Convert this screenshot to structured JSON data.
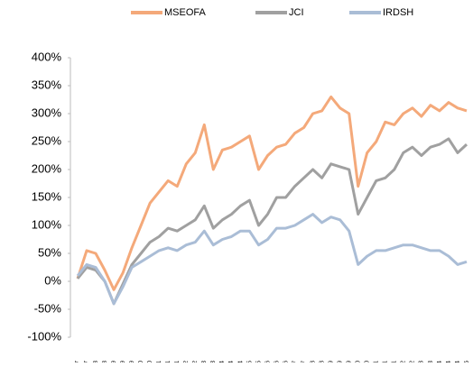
{
  "chart_data": {
    "type": "line",
    "categories": [
      "Jun-07",
      "Oct-07",
      "Mar-08",
      "Aug-08",
      "Jan-09",
      "Jun-09",
      "Nov-09",
      "Apr-10",
      "Sep-10",
      "Feb-11",
      "Jul-11",
      "Dec-11",
      "May-12",
      "Oct-12",
      "Mar-13",
      "Aug-13",
      "Jan-14",
      "Jun-14",
      "Nov-14",
      "Apr-15",
      "Sep-15",
      "Feb-16",
      "Jul-16",
      "Dec-16",
      "May-17",
      "Oct-17",
      "Mar-18",
      "Aug-18",
      "Jan-19",
      "Jun-19",
      "Nov-19",
      "Apr-20",
      "Sep-20",
      "Feb-21",
      "Jul-21",
      "Dec-21",
      "May-22",
      "Oct-22",
      "Mar-23",
      "Aug-23",
      "Jan-24",
      "Jun-24",
      "Nov-24",
      "Apr-25"
    ],
    "series": [
      {
        "name": "MSEOFA",
        "color": "#f4a97a",
        "values": [
          5,
          55,
          50,
          20,
          -15,
          15,
          60,
          100,
          140,
          160,
          180,
          170,
          210,
          230,
          280,
          200,
          235,
          240,
          250,
          260,
          200,
          225,
          240,
          245,
          265,
          275,
          300,
          305,
          330,
          310,
          300,
          170,
          230,
          250,
          285,
          280,
          300,
          310,
          295,
          315,
          305,
          320,
          310,
          305
        ]
      },
      {
        "name": "JCI",
        "color": "#a0a0a0",
        "values": [
          5,
          25,
          20,
          0,
          -40,
          -5,
          30,
          50,
          70,
          80,
          95,
          90,
          100,
          110,
          135,
          95,
          110,
          120,
          135,
          145,
          100,
          120,
          150,
          150,
          170,
          185,
          200,
          185,
          210,
          205,
          200,
          120,
          150,
          180,
          185,
          200,
          230,
          240,
          225,
          240,
          245,
          255,
          230,
          245
        ]
      },
      {
        "name": "IRDSH",
        "color": "#aabdd6",
        "values": [
          10,
          30,
          25,
          0,
          -40,
          -10,
          25,
          35,
          45,
          55,
          60,
          55,
          65,
          70,
          90,
          65,
          75,
          80,
          90,
          90,
          65,
          75,
          95,
          95,
          100,
          110,
          120,
          105,
          115,
          110,
          90,
          30,
          45,
          55,
          55,
          60,
          65,
          65,
          60,
          55,
          55,
          45,
          30,
          35
        ]
      }
    ],
    "ylim": [
      -100,
      400
    ],
    "yticks": [
      {
        "value": -100,
        "label": "-100%"
      },
      {
        "value": -50,
        "label": "-50%"
      },
      {
        "value": 0,
        "label": "0%"
      },
      {
        "value": 50,
        "label": "50%"
      },
      {
        "value": 100,
        "label": "100%"
      },
      {
        "value": 150,
        "label": "150%"
      },
      {
        "value": 200,
        "label": "200%"
      },
      {
        "value": 250,
        "label": "250%"
      },
      {
        "value": 300,
        "label": "300%"
      },
      {
        "value": 350,
        "label": "350%"
      },
      {
        "value": 400,
        "label": "400%"
      }
    ],
    "legend": "top",
    "grid": false
  }
}
